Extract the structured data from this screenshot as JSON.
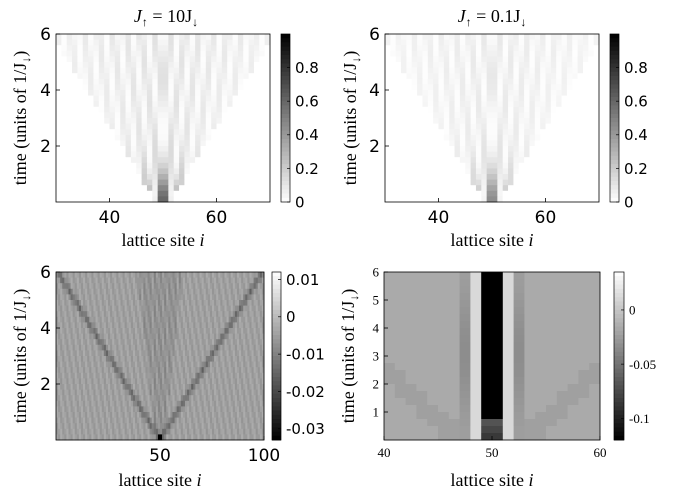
{
  "chart_data": [
    {
      "type": "heatmap",
      "title_main": "J",
      "title_sub1": "↑",
      "title_mid": " = 10J",
      "title_sub2": "↓",
      "xlabel_text": "lattice site ",
      "xlabel_var": "i",
      "ylabel_pre": "time (units of 1/J",
      "ylabel_sub": "↓",
      "ylabel_post": ")",
      "xlim": [
        30,
        70
      ],
      "ylim": [
        0,
        6
      ],
      "xticks": [
        40,
        60
      ],
      "yticks": [
        2,
        4,
        6
      ],
      "colorbar": {
        "range": [
          0,
          1
        ],
        "ticks": [
          0,
          0.2,
          0.4,
          0.6,
          0.8
        ],
        "tick_labels": [
          "0",
          "0.2",
          "0.4",
          "0.6",
          "0.8"
        ],
        "colormap": "white-to-black"
      },
      "pattern": {
        "kind": "light-cone",
        "center_site": 50,
        "cone_edge_velocity": 3.3,
        "peak_value": 1.0
      }
    },
    {
      "type": "heatmap",
      "title_main": "J",
      "title_sub1": "↑",
      "title_mid": " = 0.1J",
      "title_sub2": "↓",
      "xlabel_text": "lattice site ",
      "xlabel_var": "i",
      "ylabel_pre": "time (units of 1/J",
      "ylabel_sub": "↓",
      "ylabel_post": ")",
      "xlim": [
        30,
        70
      ],
      "ylim": [
        0,
        6
      ],
      "xticks": [
        40,
        60
      ],
      "yticks": [
        2,
        4,
        6
      ],
      "colorbar": {
        "range": [
          0,
          1
        ],
        "ticks": [
          0,
          0.2,
          0.4,
          0.6,
          0.8
        ],
        "tick_labels": [
          "0",
          "0.2",
          "0.4",
          "0.6",
          "0.8"
        ],
        "colormap": "white-to-black"
      },
      "pattern": {
        "kind": "light-cone",
        "center_site": 50,
        "cone_edge_velocity": 3.3,
        "peak_value": 1.0
      }
    },
    {
      "type": "heatmap",
      "xlabel_text": "lattice site ",
      "xlabel_var": "i",
      "ylabel_pre": "time (units of 1/J",
      "ylabel_sub": "↓",
      "ylabel_post": ")",
      "xlim": [
        0,
        100
      ],
      "ylim": [
        0,
        6
      ],
      "xticks": [
        50,
        100
      ],
      "yticks": [
        2,
        4,
        6
      ],
      "colorbar": {
        "range": [
          -0.033,
          0.012
        ],
        "ticks": [
          0.01,
          0,
          -0.01,
          -0.02,
          -0.03
        ],
        "tick_labels": [
          "0.01",
          "0",
          "-0.01",
          "-0.02",
          "-0.03"
        ],
        "colormap": "gray"
      },
      "pattern": {
        "kind": "fast-cone-with-reflections",
        "center_site": 50,
        "min_value": -0.03
      }
    },
    {
      "type": "heatmap",
      "xlabel_text": "lattice site ",
      "xlabel_var": "i",
      "ylabel_pre": "time (units of 1/J",
      "ylabel_sub": "↓",
      "ylabel_post": ")",
      "xlim": [
        40,
        60
      ],
      "ylim": [
        0,
        6
      ],
      "xticks": [
        40,
        50,
        60
      ],
      "yticks": [
        1,
        2,
        3,
        4,
        5,
        6
      ],
      "colorbar": {
        "range": [
          -0.12,
          0.035
        ],
        "ticks": [
          0,
          -0.05,
          -0.1
        ],
        "tick_labels": [
          "0",
          "-0.05",
          "-0.1"
        ],
        "colormap": "gray"
      },
      "pattern": {
        "kind": "static-column",
        "center_site": 50,
        "min_value": -0.11
      }
    }
  ]
}
